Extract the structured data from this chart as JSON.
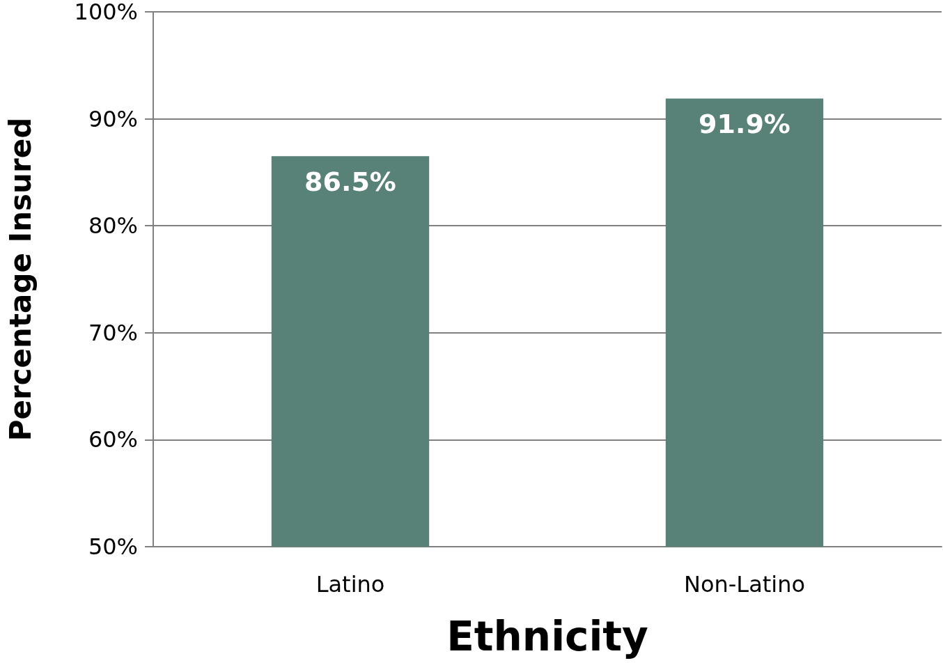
{
  "chart_data": {
    "type": "bar",
    "xlabel": "Ethnicity",
    "ylabel": "Percentage Insured",
    "categories": [
      "Latino",
      "Non-Latino"
    ],
    "values": [
      86.5,
      91.9
    ],
    "value_labels": [
      "86.5%",
      "91.9%"
    ],
    "color": "#588178",
    "ylim": [
      50,
      100
    ],
    "yticks": [
      {
        "value": 50,
        "label": "50%"
      },
      {
        "value": 60,
        "label": "60%"
      },
      {
        "value": 70,
        "label": "70%"
      },
      {
        "value": 80,
        "label": "80%"
      },
      {
        "value": 90,
        "label": "90%"
      },
      {
        "value": 100,
        "label": "100%"
      }
    ],
    "grid": "y"
  }
}
